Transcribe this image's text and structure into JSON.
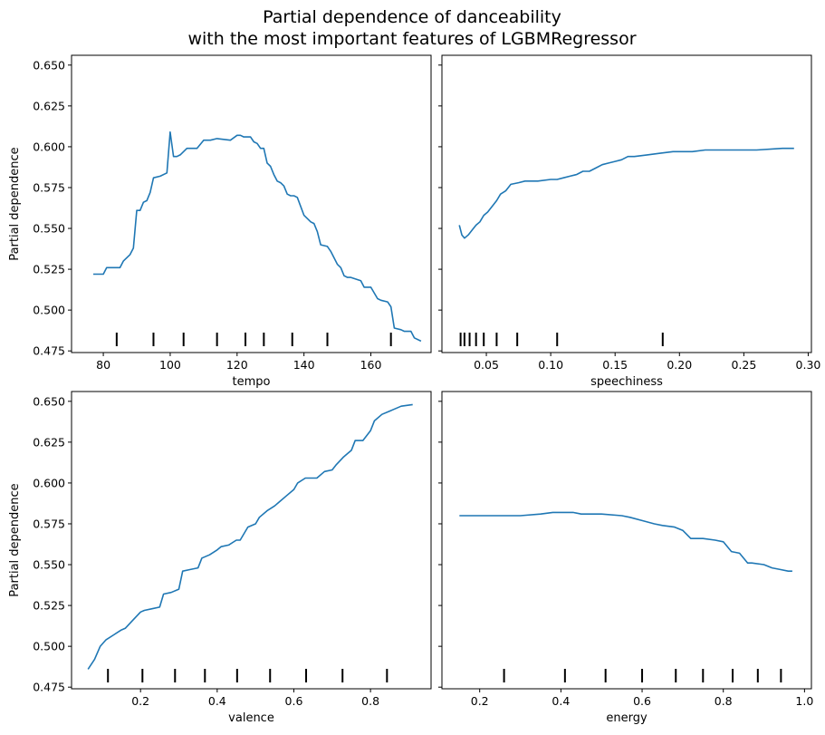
{
  "title_lines": [
    "Partial dependence of danceability",
    "with the most important features of LGBMRegressor"
  ],
  "colors": {
    "line": "#1f77b4",
    "axes": "#000000",
    "background": "#ffffff"
  },
  "ylabel": "Partial dependence",
  "chart_data": [
    {
      "type": "line",
      "xlabel": "tempo",
      "ylabel": "Partial dependence",
      "xlim": [
        70.5,
        178
      ],
      "ylim": [
        0.474,
        0.656
      ],
      "xticks": [
        80,
        100,
        120,
        140,
        160
      ],
      "xtick_labels": [
        "80",
        "100",
        "120",
        "140",
        "160"
      ],
      "yticks": [
        0.475,
        0.5,
        0.525,
        0.55,
        0.575,
        0.6,
        0.625,
        0.65
      ],
      "ytick_labels": [
        "0.475",
        "0.500",
        "0.525",
        "0.550",
        "0.575",
        "0.600",
        "0.625",
        "0.650"
      ],
      "deciles": [
        84,
        95,
        104,
        114,
        122.5,
        128,
        136.5,
        147,
        166
      ],
      "x": [
        77,
        80,
        81,
        82,
        85,
        86,
        88,
        89,
        90,
        91,
        92,
        93,
        94,
        95,
        97,
        99,
        100,
        101,
        102,
        103,
        104,
        105,
        108,
        110,
        112,
        114,
        118,
        120,
        121,
        122,
        124,
        125,
        126,
        127,
        128,
        129,
        130,
        131,
        132,
        133,
        134,
        135,
        136,
        137,
        138,
        140,
        141,
        142,
        143,
        144,
        145,
        147,
        148,
        150,
        151,
        152,
        153,
        154,
        157,
        158,
        160,
        162,
        163,
        165,
        166,
        167,
        169,
        170,
        172,
        173,
        175
      ],
      "y": [
        0.522,
        0.522,
        0.526,
        0.526,
        0.526,
        0.53,
        0.534,
        0.538,
        0.561,
        0.561,
        0.566,
        0.567,
        0.572,
        0.581,
        0.582,
        0.584,
        0.609,
        0.594,
        0.594,
        0.595,
        0.597,
        0.599,
        0.599,
        0.604,
        0.604,
        0.605,
        0.604,
        0.607,
        0.607,
        0.606,
        0.606,
        0.603,
        0.602,
        0.599,
        0.599,
        0.59,
        0.588,
        0.583,
        0.579,
        0.578,
        0.576,
        0.571,
        0.57,
        0.57,
        0.569,
        0.558,
        0.556,
        0.554,
        0.553,
        0.548,
        0.54,
        0.539,
        0.536,
        0.528,
        0.526,
        0.521,
        0.52,
        0.52,
        0.518,
        0.514,
        0.514,
        0.507,
        0.506,
        0.505,
        0.502,
        0.489,
        0.488,
        0.487,
        0.487,
        0.483,
        0.481
      ]
    },
    {
      "type": "line",
      "xlabel": "speechiness",
      "ylabel": "",
      "xlim": [
        0.0155,
        0.3025
      ],
      "ylim": [
        0.474,
        0.656
      ],
      "xticks": [
        0.05,
        0.1,
        0.15,
        0.2,
        0.25,
        0.3
      ],
      "xtick_labels": [
        "0.05",
        "0.10",
        "0.15",
        "0.20",
        "0.25",
        "0.30"
      ],
      "yticks": [
        0.475,
        0.5,
        0.525,
        0.55,
        0.575,
        0.6,
        0.625,
        0.65
      ],
      "ytick_labels": [
        "",
        "",
        "",
        "",
        "",
        "",
        "",
        ""
      ],
      "deciles": [
        0.03,
        0.033,
        0.037,
        0.042,
        0.048,
        0.058,
        0.074,
        0.105,
        0.187
      ],
      "x": [
        0.029,
        0.031,
        0.033,
        0.036,
        0.039,
        0.042,
        0.045,
        0.048,
        0.051,
        0.055,
        0.058,
        0.061,
        0.065,
        0.069,
        0.075,
        0.08,
        0.085,
        0.09,
        0.1,
        0.105,
        0.11,
        0.115,
        0.12,
        0.125,
        0.13,
        0.135,
        0.14,
        0.145,
        0.15,
        0.155,
        0.16,
        0.165,
        0.175,
        0.185,
        0.195,
        0.2,
        0.205,
        0.21,
        0.22,
        0.24,
        0.26,
        0.28,
        0.289
      ],
      "y": [
        0.552,
        0.546,
        0.544,
        0.546,
        0.549,
        0.552,
        0.554,
        0.558,
        0.56,
        0.564,
        0.567,
        0.571,
        0.573,
        0.577,
        0.578,
        0.579,
        0.579,
        0.579,
        0.58,
        0.58,
        0.581,
        0.582,
        0.583,
        0.585,
        0.585,
        0.587,
        0.589,
        0.59,
        0.591,
        0.592,
        0.594,
        0.594,
        0.595,
        0.596,
        0.597,
        0.597,
        0.597,
        0.597,
        0.598,
        0.598,
        0.598,
        0.599,
        0.599
      ]
    },
    {
      "type": "line",
      "xlabel": "valence",
      "ylabel": "Partial dependence",
      "xlim": [
        0.02,
        0.958
      ],
      "ylim": [
        0.474,
        0.656
      ],
      "xticks": [
        0.2,
        0.4,
        0.6,
        0.8
      ],
      "xtick_labels": [
        "0.2",
        "0.4",
        "0.6",
        "0.8"
      ],
      "yticks": [
        0.475,
        0.5,
        0.525,
        0.55,
        0.575,
        0.6,
        0.625,
        0.65
      ],
      "ytick_labels": [
        "0.475",
        "0.500",
        "0.525",
        "0.550",
        "0.575",
        "0.600",
        "0.625",
        "0.650"
      ],
      "deciles": [
        0.115,
        0.205,
        0.29,
        0.368,
        0.452,
        0.538,
        0.632,
        0.727,
        0.843
      ],
      "x": [
        0.063,
        0.08,
        0.095,
        0.11,
        0.13,
        0.15,
        0.16,
        0.18,
        0.2,
        0.21,
        0.23,
        0.25,
        0.26,
        0.28,
        0.3,
        0.31,
        0.33,
        0.35,
        0.36,
        0.38,
        0.4,
        0.41,
        0.43,
        0.45,
        0.46,
        0.48,
        0.5,
        0.51,
        0.53,
        0.55,
        0.56,
        0.58,
        0.6,
        0.61,
        0.63,
        0.65,
        0.66,
        0.68,
        0.7,
        0.71,
        0.73,
        0.75,
        0.76,
        0.78,
        0.8,
        0.81,
        0.83,
        0.85,
        0.86,
        0.88,
        0.91
      ],
      "y": [
        0.486,
        0.492,
        0.5,
        0.504,
        0.507,
        0.51,
        0.511,
        0.516,
        0.521,
        0.522,
        0.523,
        0.524,
        0.532,
        0.533,
        0.535,
        0.546,
        0.547,
        0.548,
        0.554,
        0.556,
        0.559,
        0.561,
        0.562,
        0.565,
        0.565,
        0.573,
        0.575,
        0.579,
        0.583,
        0.586,
        0.588,
        0.592,
        0.596,
        0.6,
        0.603,
        0.603,
        0.603,
        0.607,
        0.608,
        0.611,
        0.616,
        0.62,
        0.626,
        0.626,
        0.632,
        0.638,
        0.642,
        0.644,
        0.645,
        0.647,
        0.648
      ]
    },
    {
      "type": "line",
      "xlabel": "energy",
      "ylabel": "",
      "xlim": [
        0.107,
        1.017
      ],
      "ylim": [
        0.474,
        0.656
      ],
      "xticks": [
        0.2,
        0.4,
        0.6,
        0.8,
        1.0
      ],
      "xtick_labels": [
        "0.2",
        "0.4",
        "0.6",
        "0.8",
        "1.0"
      ],
      "yticks": [
        0.475,
        0.5,
        0.525,
        0.55,
        0.575,
        0.6,
        0.625,
        0.65
      ],
      "ytick_labels": [
        "",
        "",
        "",
        "",
        "",
        "",
        "",
        ""
      ],
      "deciles": [
        0.26,
        0.41,
        0.51,
        0.6,
        0.683,
        0.75,
        0.823,
        0.885,
        0.942
      ],
      "x": [
        0.15,
        0.2,
        0.25,
        0.3,
        0.35,
        0.38,
        0.4,
        0.43,
        0.45,
        0.5,
        0.55,
        0.57,
        0.6,
        0.63,
        0.65,
        0.68,
        0.7,
        0.72,
        0.74,
        0.75,
        0.78,
        0.8,
        0.82,
        0.84,
        0.86,
        0.87,
        0.9,
        0.92,
        0.94,
        0.96,
        0.97
      ],
      "y": [
        0.58,
        0.58,
        0.58,
        0.58,
        0.581,
        0.582,
        0.582,
        0.582,
        0.581,
        0.581,
        0.58,
        0.579,
        0.577,
        0.575,
        0.574,
        0.573,
        0.571,
        0.566,
        0.566,
        0.566,
        0.565,
        0.564,
        0.558,
        0.557,
        0.551,
        0.551,
        0.55,
        0.548,
        0.547,
        0.546,
        0.546
      ]
    }
  ]
}
